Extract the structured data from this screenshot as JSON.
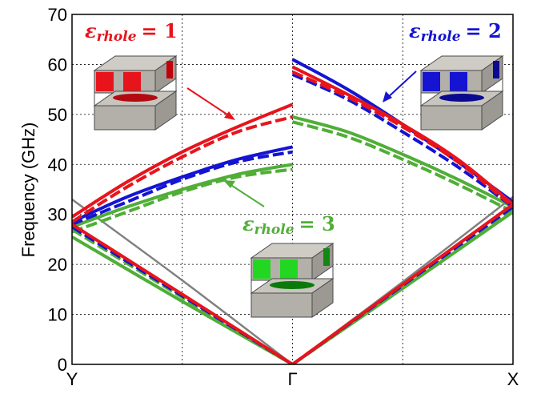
{
  "chart_data": {
    "type": "line",
    "ylabel": "Frequency (GHz)",
    "ylim": [
      0,
      70
    ],
    "yticks": [
      "0",
      "10",
      "20",
      "30",
      "40",
      "50",
      "60",
      "70"
    ],
    "xticks": [
      "Y",
      "Γ",
      "X"
    ],
    "grid": true,
    "annotations": [
      {
        "symbol": "ε",
        "subscript": "rhole",
        "value": "= 1",
        "color": "#e8141c"
      },
      {
        "symbol": "ε",
        "subscript": "rhole",
        "value": "= 2",
        "color": "#1414d2"
      },
      {
        "symbol": "ε",
        "subscript": "rhole",
        "value": "= 3",
        "color": "#50ae37"
      }
    ],
    "colors": {
      "eps1": "#e8141c",
      "eps2": "#1414d2",
      "eps3": "#50ae37",
      "light_line": "#808080"
    },
    "series": [
      {
        "group": "eps1",
        "style": "solid",
        "x": [
          0,
          0.25,
          0.5,
          0.75,
          1
        ],
        "y": [
          29.5,
          36.5,
          42.5,
          47.5,
          52
        ]
      },
      {
        "group": "eps1",
        "style": "dashed",
        "x": [
          0,
          0.25,
          0.5,
          0.75,
          1
        ],
        "y": [
          28.5,
          35.5,
          41.5,
          46.5,
          49.5
        ]
      },
      {
        "group": "eps2",
        "style": "solid",
        "x": [
          0,
          0.25,
          0.5,
          0.75,
          1
        ],
        "y": [
          28.5,
          33.5,
          37.5,
          41,
          43.5
        ]
      },
      {
        "group": "eps2",
        "style": "dashed",
        "x": [
          0,
          0.25,
          0.5,
          0.75,
          1
        ],
        "y": [
          28,
          32.5,
          37,
          40.5,
          42.5
        ]
      },
      {
        "group": "eps3",
        "style": "solid",
        "x": [
          0,
          0.25,
          0.5,
          0.75,
          1
        ],
        "y": [
          27.5,
          31.5,
          35,
          38,
          40
        ]
      },
      {
        "group": "eps3",
        "style": "dashed",
        "x": [
          0,
          0.25,
          0.5,
          0.75,
          1
        ],
        "y": [
          26.5,
          30.5,
          34.5,
          37.5,
          39
        ]
      },
      {
        "group": "eps1",
        "style": "solid",
        "x": [
          0,
          0.5,
          1
        ],
        "y": [
          28,
          14,
          0
        ]
      },
      {
        "group": "eps2",
        "style": "dashed",
        "x": [
          0,
          0.5,
          1
        ],
        "y": [
          27.5,
          13.7,
          0
        ]
      },
      {
        "group": "eps3",
        "style": "dashed",
        "x": [
          0,
          0.5,
          1
        ],
        "y": [
          27,
          13.4,
          0
        ]
      },
      {
        "group": "eps3",
        "style": "solid",
        "x": [
          0,
          0.5,
          1
        ],
        "y": [
          25.5,
          12.6,
          0
        ]
      },
      {
        "group": "light_line",
        "style": "solid",
        "x": [
          0,
          0.5,
          1
        ],
        "y": [
          33,
          16.8,
          0
        ]
      },
      {
        "group": "eps1",
        "style": "solid",
        "x": [
          1,
          1.25,
          1.5,
          1.75,
          2
        ],
        "y": [
          59.5,
          54,
          48,
          41,
          32
        ]
      },
      {
        "group": "eps1",
        "style": "dashed",
        "x": [
          1,
          1.25,
          1.5,
          1.75,
          2
        ],
        "y": [
          58.5,
          53.5,
          47.5,
          40.5,
          31.5
        ]
      },
      {
        "group": "eps2",
        "style": "solid",
        "x": [
          1,
          1.25,
          1.5,
          1.75,
          2
        ],
        "y": [
          61,
          55,
          48,
          40.5,
          32.5
        ]
      },
      {
        "group": "eps2",
        "style": "dashed",
        "x": [
          1,
          1.25,
          1.5,
          1.75,
          2
        ],
        "y": [
          58,
          53,
          46.5,
          39.5,
          31.5
        ]
      },
      {
        "group": "eps3",
        "style": "solid",
        "x": [
          1,
          1.25,
          1.5,
          1.75,
          2
        ],
        "y": [
          49.5,
          46.5,
          42,
          37,
          31.5
        ]
      },
      {
        "group": "eps3",
        "style": "dashed",
        "x": [
          1,
          1.25,
          1.5,
          1.75,
          2
        ],
        "y": [
          48.5,
          45.5,
          41,
          36,
          30.5
        ]
      },
      {
        "group": "eps1",
        "style": "solid",
        "x": [
          1,
          1.5,
          2
        ],
        "y": [
          0,
          16,
          32
        ]
      },
      {
        "group": "eps2",
        "style": "dashed",
        "x": [
          1,
          1.5,
          2
        ],
        "y": [
          0,
          15.8,
          31.5
        ]
      },
      {
        "group": "eps3",
        "style": "solid",
        "x": [
          1,
          1.5,
          2
        ],
        "y": [
          0,
          15.2,
          30.5
        ]
      },
      {
        "group": "eps3",
        "style": "dashed",
        "x": [
          1,
          1.5,
          2
        ],
        "y": [
          0,
          15.5,
          31
        ]
      },
      {
        "group": "light_line",
        "style": "solid",
        "x": [
          1,
          1.5,
          2
        ],
        "y": [
          0,
          16.5,
          33.5
        ]
      }
    ]
  }
}
